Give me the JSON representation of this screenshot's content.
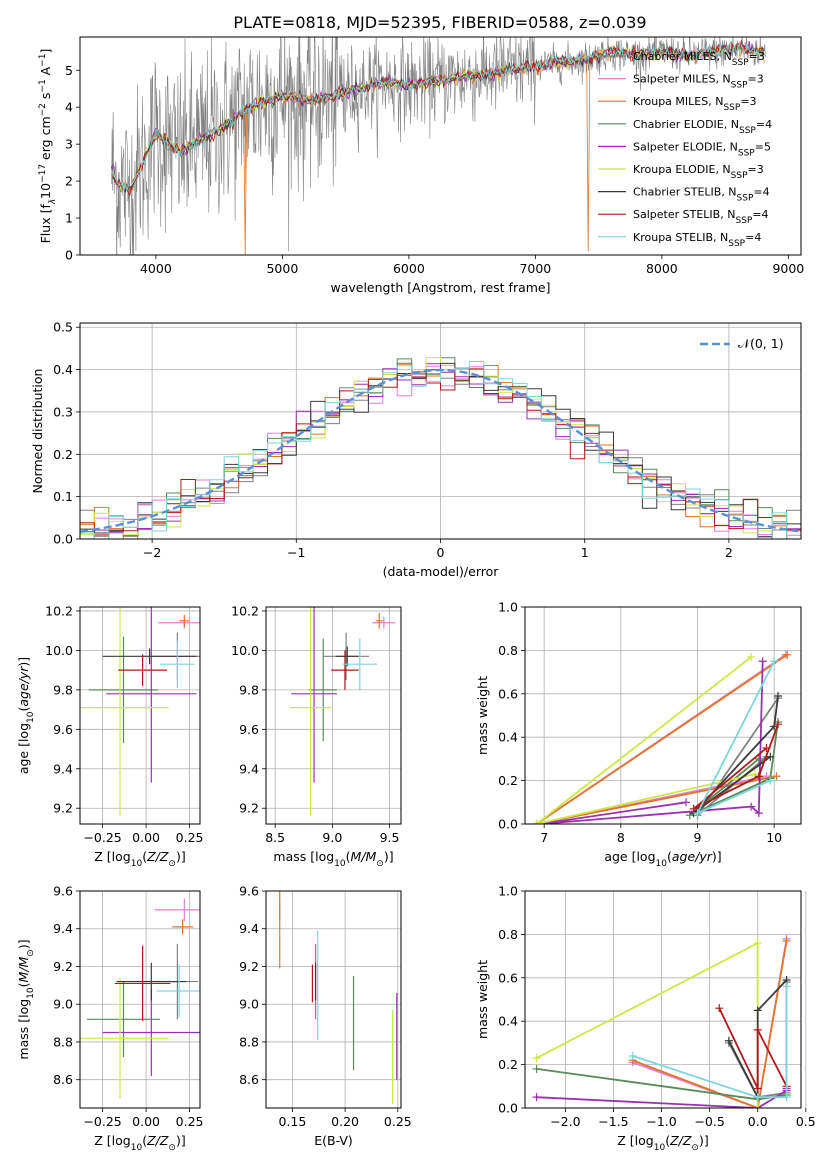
{
  "figure": {
    "title": "PLATE=0818, MJD=52395, FIBERID=0588, z=0.039"
  },
  "models": [
    {
      "name": "Chabrier MILES",
      "nssp": "3",
      "color": "#808080"
    },
    {
      "name": "Salpeter MILES",
      "nssp": "3",
      "color": "#e37fd8"
    },
    {
      "name": "Kroupa MILES",
      "nssp": "3",
      "color": "#e0762a"
    },
    {
      "name": "Chabrier ELODIE",
      "nssp": "4",
      "color": "#5a8a5a"
    },
    {
      "name": "Salpeter ELODIE",
      "nssp": "5",
      "color": "#9b31b0"
    },
    {
      "name": "Kroupa ELODIE",
      "nssp": "3",
      "color": "#cde845"
    },
    {
      "name": "Chabrier STELIB",
      "nssp": "4",
      "color": "#3a3a3a"
    },
    {
      "name": "Salpeter STELIB",
      "nssp": "4",
      "color": "#b01a1a"
    },
    {
      "name": "Kroupa STELIB",
      "nssp": "4",
      "color": "#7dd6dc"
    }
  ],
  "chart_data": [
    {
      "id": "spectrum",
      "type": "line",
      "xlabel": "wavelength [Angstrom, rest frame]",
      "ylabel": "Flux [f",
      "xlim": [
        3400,
        9100
      ],
      "ylim": [
        0,
        5.9
      ],
      "xticks": [
        4000,
        5000,
        6000,
        7000,
        8000,
        9000
      ],
      "yticks": [
        0,
        1,
        2,
        3,
        4,
        5
      ],
      "continuum": {
        "x": [
          3650,
          3700,
          3800,
          3900,
          4000,
          4100,
          4200,
          4300,
          4400,
          4500,
          4600,
          4700,
          4800,
          4900,
          5000,
          5200,
          5400,
          5600,
          5800,
          6000,
          6200,
          6400,
          6600,
          6800,
          7000,
          7200,
          7400,
          7600,
          7800,
          8000,
          8200,
          8400,
          8600,
          8800
        ],
        "y": [
          2.3,
          1.9,
          1.8,
          2.5,
          3.3,
          3.0,
          2.8,
          3.0,
          3.2,
          3.4,
          3.6,
          3.9,
          4.1,
          4.2,
          4.3,
          4.2,
          4.3,
          4.5,
          4.7,
          4.6,
          4.7,
          4.8,
          4.9,
          5.0,
          5.1,
          5.2,
          5.3,
          5.5,
          5.4,
          5.5,
          5.4,
          5.5,
          5.6,
          5.5
        ]
      },
      "legend_position": "upper right"
    },
    {
      "id": "residuals",
      "type": "line",
      "xlabel": "(data-model)/error",
      "ylabel": "Normed distribution",
      "xlim": [
        -2.5,
        2.5
      ],
      "ylim": [
        0,
        0.51
      ],
      "xticks": [
        -2,
        -1,
        0,
        1,
        2
      ],
      "yticks": [
        0.0,
        0.1,
        0.2,
        0.3,
        0.4,
        0.5
      ],
      "bin_width": 0.1,
      "legend": "𝒩(0, 1)",
      "gaussian": {
        "mu": 0,
        "sigma": 1
      }
    },
    {
      "id": "age_vs_Z",
      "type": "scatter",
      "xlabel": "Z [log",
      "ylabel": "age  [log",
      "xlim": [
        -0.38,
        0.31
      ],
      "ylim": [
        9.12,
        10.22
      ],
      "xticks": [
        -0.25,
        0.0,
        0.25
      ],
      "yticks": [
        9.2,
        9.4,
        9.6,
        9.8,
        10.0,
        10.2
      ],
      "points": [
        {
          "model": 0,
          "x": 0.18,
          "y": 9.97,
          "xerr": 0.15,
          "yerr": 0.12
        },
        {
          "model": 1,
          "x": 0.22,
          "y": 10.14,
          "xerr": 0.15,
          "yerr": 0.03
        },
        {
          "model": 2,
          "x": 0.22,
          "y": 10.15,
          "xerr": 0.03,
          "yerr": 0.03
        },
        {
          "model": 3,
          "x": -0.13,
          "y": 9.8,
          "xerr": 0.2,
          "yerr": 0.27
        },
        {
          "model": 4,
          "x": 0.03,
          "y": 9.78,
          "xerr": 0.26,
          "yerr": 0.45
        },
        {
          "model": 5,
          "x": -0.15,
          "y": 9.71,
          "xerr": 0.28,
          "yerr": 0.55
        },
        {
          "model": 6,
          "x": 0.02,
          "y": 9.97,
          "xerr": 0.27,
          "yerr": 0.04
        },
        {
          "model": 7,
          "x": -0.02,
          "y": 9.9,
          "xerr": 0.14,
          "yerr": 0.08
        },
        {
          "model": 8,
          "x": 0.18,
          "y": 9.93,
          "xerr": 0.1,
          "yerr": 0.12
        }
      ]
    },
    {
      "id": "age_vs_mass",
      "type": "scatter",
      "xlabel": "mass [log",
      "ylabel": "",
      "xlim": [
        8.42,
        9.6
      ],
      "ylim": [
        9.12,
        10.22
      ],
      "xticks": [
        8.5,
        9.0,
        9.5
      ],
      "yticks": [
        9.2,
        9.4,
        9.6,
        9.8,
        10.0,
        10.2
      ],
      "points": [
        {
          "model": 0,
          "x": 9.12,
          "y": 9.97,
          "xerr": 0.2,
          "yerr": 0.12
        },
        {
          "model": 1,
          "x": 9.45,
          "y": 10.14,
          "xerr": 0.1,
          "yerr": 0.03
        },
        {
          "model": 2,
          "x": 9.41,
          "y": 10.15,
          "xerr": 0.03,
          "yerr": 0.04
        },
        {
          "model": 3,
          "x": 8.92,
          "y": 9.8,
          "xerr": 0.12,
          "yerr": 0.26
        },
        {
          "model": 4,
          "x": 8.84,
          "y": 9.78,
          "xerr": 0.2,
          "yerr": 0.45
        },
        {
          "model": 5,
          "x": 8.81,
          "y": 9.71,
          "xerr": 0.18,
          "yerr": 0.55
        },
        {
          "model": 6,
          "x": 9.13,
          "y": 9.97,
          "xerr": 0.1,
          "yerr": 0.05
        },
        {
          "model": 7,
          "x": 9.11,
          "y": 9.9,
          "xerr": 0.12,
          "yerr": 0.1
        },
        {
          "model": 8,
          "x": 9.24,
          "y": 9.93,
          "xerr": 0.15,
          "yerr": 0.13
        }
      ]
    },
    {
      "id": "weight_vs_age",
      "type": "line",
      "xlabel": "age  [log",
      "ylabel": "mass weight",
      "xlim": [
        6.75,
        10.35
      ],
      "ylim": [
        0,
        1.0
      ],
      "xticks": [
        7,
        8,
        9,
        10
      ],
      "yticks": [
        0.0,
        0.2,
        0.4,
        0.6,
        0.8,
        1.0
      ],
      "series": [
        {
          "model": 0,
          "x": [
            9.9,
            9.0,
            10.05
          ],
          "y": [
            0.31,
            0.04,
            0.58
          ]
        },
        {
          "model": 1,
          "x": [
            9.9,
            6.9,
            10.15
          ],
          "y": [
            0.22,
            0.0,
            0.78
          ]
        },
        {
          "model": 2,
          "x": [
            10.03,
            6.9,
            10.17
          ],
          "y": [
            0.22,
            0.0,
            0.78
          ]
        },
        {
          "model": 3,
          "x": [
            9.8,
            8.9,
            9.95,
            10.05
          ],
          "y": [
            0.3,
            0.04,
            0.21,
            0.47
          ]
        },
        {
          "model": 4,
          "x": [
            8.85,
            6.95,
            9.7,
            9.8,
            9.85
          ],
          "y": [
            0.1,
            0.0,
            0.08,
            0.05,
            0.75
          ]
        },
        {
          "model": 5,
          "x": [
            9.7,
            6.9,
            9.75
          ],
          "y": [
            0.77,
            0.0,
            0.23
          ]
        },
        {
          "model": 6,
          "x": [
            9.95,
            8.95,
            10.0,
            10.05
          ],
          "y": [
            0.31,
            0.05,
            0.45,
            0.59
          ]
        },
        {
          "model": 7,
          "x": [
            9.9,
            8.95,
            9.8,
            10.05
          ],
          "y": [
            0.35,
            0.07,
            0.22,
            0.46
          ]
        },
        {
          "model": 8,
          "x": [
            9.95,
            9.0,
            10.0
          ],
          "y": [
            0.2,
            0.05,
            0.75
          ]
        }
      ]
    },
    {
      "id": "mass_vs_Z",
      "type": "scatter",
      "xlabel": "Z [log",
      "ylabel": "mass [log",
      "xlim": [
        -0.38,
        0.31
      ],
      "ylim": [
        8.45,
        9.6
      ],
      "xticks": [
        -0.25,
        0.0,
        0.25
      ],
      "yticks": [
        8.6,
        8.8,
        9.0,
        9.2,
        9.4,
        9.6
      ],
      "points": [
        {
          "model": 0,
          "x": 0.18,
          "y": 9.12,
          "xerr": 0.12,
          "yerr": 0.2
        },
        {
          "model": 1,
          "x": 0.22,
          "y": 9.5,
          "xerr": 0.17,
          "yerr": 0.06
        },
        {
          "model": 2,
          "x": 0.21,
          "y": 9.41,
          "xerr": 0.06,
          "yerr": 0.04
        },
        {
          "model": 3,
          "x": -0.13,
          "y": 8.92,
          "xerr": 0.21,
          "yerr": 0.2
        },
        {
          "model": 4,
          "x": 0.03,
          "y": 8.85,
          "xerr": 0.28,
          "yerr": 0.23
        },
        {
          "model": 5,
          "x": -0.15,
          "y": 8.82,
          "xerr": 0.28,
          "yerr": 0.32
        },
        {
          "model": 6,
          "x": 0.03,
          "y": 9.12,
          "xerr": 0.2,
          "yerr": 0.1
        },
        {
          "model": 7,
          "x": -0.02,
          "y": 9.11,
          "xerr": 0.16,
          "yerr": 0.2
        },
        {
          "model": 8,
          "x": 0.19,
          "y": 9.07,
          "xerr": 0.13,
          "yerr": 0.14
        }
      ]
    },
    {
      "id": "mass_vs_EBV",
      "type": "scatter",
      "xlabel": "E(B-V)",
      "ylabel": "",
      "xlim": [
        0.125,
        0.253
      ],
      "ylim": [
        8.45,
        9.6
      ],
      "xticks": [
        0.15,
        0.2,
        0.25
      ],
      "yticks": [
        8.6,
        8.8,
        9.0,
        9.2,
        9.4,
        9.6
      ],
      "points": [
        {
          "model": 0,
          "x": 0.172,
          "y": 9.12,
          "xerr": 0,
          "yerr": 0.2
        },
        {
          "model": 1,
          "x": 0.138,
          "y": 9.5,
          "xerr": 0,
          "yerr": 0.06
        },
        {
          "model": 2,
          "x": 0.138,
          "y": 9.41,
          "xerr": 0,
          "yerr": 0.22
        },
        {
          "model": 3,
          "x": 0.208,
          "y": 8.9,
          "xerr": 0,
          "yerr": 0.25
        },
        {
          "model": 4,
          "x": 0.249,
          "y": 8.83,
          "xerr": 0,
          "yerr": 0.23
        },
        {
          "model": 5,
          "x": 0.245,
          "y": 8.72,
          "xerr": 0,
          "yerr": 0.25
        },
        {
          "model": 6,
          "x": 0.172,
          "y": 9.12,
          "xerr": 0,
          "yerr": 0.1
        },
        {
          "model": 7,
          "x": 0.169,
          "y": 9.11,
          "xerr": 0,
          "yerr": 0.1
        },
        {
          "model": 8,
          "x": 0.174,
          "y": 9.1,
          "xerr": 0,
          "yerr": 0.29
        }
      ]
    },
    {
      "id": "weight_vs_Z",
      "type": "line",
      "xlabel": "Z [log",
      "ylabel": "mass weight",
      "xlim": [
        -2.42,
        0.45
      ],
      "ylim": [
        0,
        1.0
      ],
      "xticks": [
        -2.0,
        -1.5,
        -1.0,
        -0.5,
        0.0,
        0.5
      ],
      "yticks": [
        0.0,
        0.2,
        0.4,
        0.6,
        0.8,
        1.0
      ],
      "series": [
        {
          "model": 0,
          "x": [
            -0.3,
            0.0,
            0.3,
            0.3
          ],
          "y": [
            0.3,
            0.05,
            0.07,
            0.58
          ]
        },
        {
          "model": 1,
          "x": [
            -1.3,
            0.0,
            0.3
          ],
          "y": [
            0.21,
            0.0,
            0.78
          ]
        },
        {
          "model": 2,
          "x": [
            -1.3,
            0.0,
            0.3
          ],
          "y": [
            0.22,
            0.0,
            0.77
          ]
        },
        {
          "model": 3,
          "x": [
            -2.3,
            0.0,
            0.3
          ],
          "y": [
            0.18,
            0.04,
            0.06
          ]
        },
        {
          "model": 4,
          "x": [
            -2.3,
            0.0,
            0.3,
            0.3
          ],
          "y": [
            0.05,
            0.0,
            0.08,
            0.09
          ]
        },
        {
          "model": 5,
          "x": [
            -2.3,
            0.0,
            0.0
          ],
          "y": [
            0.23,
            0.76,
            0.0
          ]
        },
        {
          "model": 6,
          "x": [
            -0.3,
            0.0,
            0.0,
            0.3
          ],
          "y": [
            0.31,
            0.05,
            0.45,
            0.59
          ]
        },
        {
          "model": 7,
          "x": [
            -0.4,
            0.0,
            0.0,
            0.3
          ],
          "y": [
            0.46,
            0.09,
            0.36,
            0.1
          ]
        },
        {
          "model": 8,
          "x": [
            -1.3,
            0.0,
            0.3,
            0.3
          ],
          "y": [
            0.24,
            0.05,
            0.05,
            0.56
          ]
        }
      ]
    }
  ]
}
